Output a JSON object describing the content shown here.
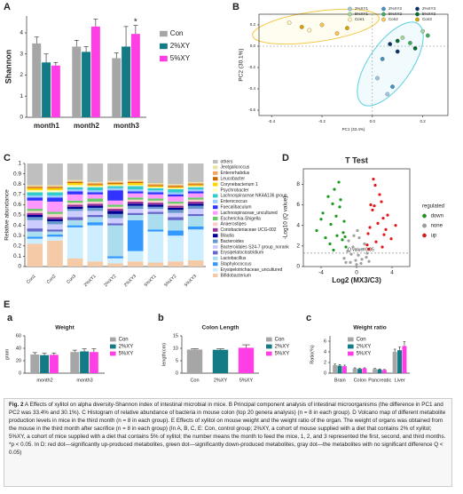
{
  "panel_labels": [
    "A",
    "B",
    "C",
    "D",
    "E",
    "a",
    "b",
    "c"
  ],
  "chart_data": [
    {
      "type": "bar",
      "ylabel": "Shannon",
      "annotation": "*",
      "categories": [
        "month1",
        "month2",
        "month3"
      ],
      "series": [
        {
          "name": "Con",
          "color": "#a6a6a6",
          "values": [
            3.5,
            3.35,
            2.8
          ],
          "errors": [
            0.3,
            0.3,
            0.25
          ]
        },
        {
          "name": "2%XY",
          "color": "#137b86",
          "values": [
            2.6,
            3.1,
            3.35
          ],
          "errors": [
            0.4,
            0.25,
            0.95
          ]
        },
        {
          "name": "5%XY",
          "color": "#ff3fe5",
          "values": [
            2.45,
            4.3,
            3.95
          ],
          "errors": [
            0.15,
            0.35,
            0.4
          ]
        }
      ],
      "ylim": [
        0,
        4.8
      ],
      "yticks": [
        0,
        1,
        2,
        3,
        4
      ]
    },
    {
      "type": "scatter",
      "xlabel": "PC1 (33.4%)",
      "ylabel": "PC2 (30.1%)",
      "series": [
        {
          "name": "2%XY1",
          "color": "#9ecae1",
          "x": [
            0.02,
            0.06
          ],
          "y": [
            -0.3,
            -0.45
          ]
        },
        {
          "name": "2%XY2",
          "color": "#4292c6",
          "x": [
            0.04,
            0.08
          ],
          "y": [
            -0.12,
            -0.38
          ]
        },
        {
          "name": "2%XY3",
          "color": "#08306b",
          "x": [
            0.07,
            0.1
          ],
          "y": [
            0.02,
            -0.05
          ]
        },
        {
          "name": "5%XY1",
          "color": "#a1d99b",
          "x": [
            0.12,
            0.2
          ],
          "y": [
            0.08,
            0.14
          ]
        },
        {
          "name": "5%XY2",
          "color": "#41ab5d",
          "x": [
            0.15,
            0.22
          ],
          "y": [
            0.03,
            0.1
          ]
        },
        {
          "name": "5%XY3",
          "color": "#006d2c",
          "x": [
            0.1,
            0.17
          ],
          "y": [
            0.05,
            -0.02
          ]
        },
        {
          "name": "Con1",
          "color": "#fff7bc",
          "x": [
            -0.33,
            -0.25
          ],
          "y": [
            0.22,
            0.15
          ]
        },
        {
          "name": "Con2",
          "color": "#fec44f",
          "x": [
            -0.2,
            -0.14
          ],
          "y": [
            0.2,
            0.12
          ]
        },
        {
          "name": "Con3",
          "color": "#d9a400",
          "x": [
            -0.28,
            -0.1
          ],
          "y": [
            0.18,
            0.17
          ]
        }
      ],
      "xlim": [
        -0.45,
        0.3
      ],
      "xticks": [
        -0.4,
        -0.2,
        {
          "value": 0,
          "label": "0.0"
        },
        0.2
      ],
      "ylim": [
        -0.65,
        0.3
      ],
      "yticks": [
        -0.6,
        -0.4,
        -0.2,
        {
          "value": 0,
          "label": "0.0"
        },
        0.2
      ]
    },
    {
      "type": "stacked_bar",
      "ylabel": "Relative abundance",
      "categories": [
        "Con1",
        "Con2",
        "Con3",
        "2%XY1",
        "2%XY2",
        "2%XY3",
        "5%XY1",
        "5%XY2",
        "5%XY3"
      ],
      "series": [
        {
          "name": "others",
          "color": "#bfbfbf",
          "values": [
            0.21,
            0.21,
            0.16,
            0.18,
            0.17,
            0.16,
            0.19,
            0.2,
            0.18
          ]
        },
        {
          "name": "Jeotgalicoccus",
          "color": "#e6e6a0",
          "values": [
            0.01,
            0.01,
            0.01,
            0.01,
            0.01,
            0.01,
            0.01,
            0.01,
            0.01
          ]
        },
        {
          "name": "Enterorhabdus",
          "color": "#f4a460",
          "values": [
            0.01,
            0.01,
            0.01,
            0.01,
            0.01,
            0.01,
            0.01,
            0.01,
            0.01
          ]
        },
        {
          "name": "Leucobacter",
          "color": "#cc6600",
          "values": [
            0.01,
            0.01,
            0.01,
            0.01,
            0.01,
            0.01,
            0.01,
            0.01,
            0.01
          ]
        },
        {
          "name": "Corynebacterium 1",
          "color": "#ffd700",
          "values": [
            0.02,
            0.02,
            0.02,
            0.01,
            0.01,
            0.02,
            0.01,
            0.01,
            0.01
          ]
        },
        {
          "name": "Psychrobacter",
          "color": "#ffffcc",
          "values": [
            0.02,
            0.02,
            0.02,
            0.01,
            0.01,
            0.01,
            0.01,
            0.01,
            0.01
          ]
        },
        {
          "name": "Lachnospiraceae NK4A136 group",
          "color": "#33cccc",
          "values": [
            0.03,
            0.03,
            0.02,
            0.03,
            0.02,
            0.03,
            0.02,
            0.03,
            0.02
          ]
        },
        {
          "name": "Enterococcus",
          "color": "#99ccff",
          "values": [
            0.02,
            0.02,
            0.02,
            0.02,
            0.02,
            0.02,
            0.02,
            0.02,
            0.02
          ]
        },
        {
          "name": "Faecalibaculum",
          "color": "#3333ff",
          "values": [
            0.03,
            0.04,
            0.03,
            0.02,
            0.1,
            0.02,
            0.02,
            0.02,
            0.02
          ]
        },
        {
          "name": "Lachnospiraceae_uncultured",
          "color": "#ff99ff",
          "values": [
            0.08,
            0.1,
            0.06,
            0.04,
            0.04,
            0.04,
            0.04,
            0.05,
            0.04
          ]
        },
        {
          "name": "Escherichia-Shigella",
          "color": "#66cc66",
          "values": [
            0.02,
            0.02,
            0.02,
            0.03,
            0.02,
            0.02,
            0.02,
            0.02,
            0.02
          ]
        },
        {
          "name": "Anaerostipes",
          "color": "#ffcccc",
          "values": [
            0.02,
            0.03,
            0.02,
            0.02,
            0.02,
            0.02,
            0.02,
            0.02,
            0.02
          ]
        },
        {
          "name": "Coriobacteriaceae UCG-002",
          "color": "#993399",
          "values": [
            0.02,
            0.02,
            0.02,
            0.02,
            0.02,
            0.02,
            0.02,
            0.02,
            0.02
          ]
        },
        {
          "name": "Blautia",
          "color": "#000099",
          "values": [
            0.02,
            0.02,
            0.02,
            0.02,
            0.03,
            0.02,
            0.02,
            0.02,
            0.02
          ]
        },
        {
          "name": "Bacteroides",
          "color": "#6699cc",
          "values": [
            0.03,
            0.03,
            0.02,
            0.03,
            0.04,
            0.03,
            0.02,
            0.03,
            0.03
          ]
        },
        {
          "name": "Bacteroidales S24-7 group_norank",
          "color": "#ccccff",
          "values": [
            0.08,
            0.05,
            0.06,
            0.04,
            0.05,
            0.04,
            0.03,
            0.04,
            0.05
          ]
        },
        {
          "name": "Erysipelatoclostridium",
          "color": "#6666cc",
          "values": [
            0.03,
            0.02,
            0.03,
            0.02,
            0.02,
            0.02,
            0.02,
            0.03,
            0.02
          ]
        },
        {
          "name": "Lactobacillus",
          "color": "#aaddee",
          "values": [
            0.05,
            0.03,
            0.05,
            0.05,
            0.3,
            0.05,
            0.15,
            0.1,
            0.1
          ]
        },
        {
          "name": "Staphylococcus",
          "color": "#3399ff",
          "values": [
            0.02,
            0.02,
            0.02,
            0.03,
            0.02,
            0.3,
            0.02,
            0.05,
            0.03
          ]
        },
        {
          "name": "Erysipelotrichaceae_uncultured",
          "color": "#cceeff",
          "values": [
            0.05,
            0.04,
            0.3,
            0.35,
            0.05,
            0.1,
            0.3,
            0.25,
            0.3
          ]
        },
        {
          "name": "Bifidobacterium",
          "color": "#f5cba7",
          "values": [
            0.22,
            0.25,
            0.08,
            0.05,
            0.03,
            0.05,
            0.04,
            0.05,
            0.06
          ]
        }
      ],
      "ylim": [
        0,
        1
      ],
      "yticks": [
        0,
        0.1,
        0.2,
        0.3,
        0.4,
        0.5,
        0.6,
        0.7,
        0.8,
        0.9,
        1
      ]
    },
    {
      "type": "scatter",
      "title": "T Test",
      "xlabel": "Log2 (MX3/C3)",
      "ylabel": "-Log10 (Q value)",
      "legend_title": "regulated",
      "annotation": "Q value: 0.05",
      "q_threshold": 0.05,
      "series": [
        {
          "name": "down",
          "color": "#1a9a1a",
          "x": [
            -4.5,
            -3.8,
            -3.2,
            -2.9,
            -2.5,
            -2.2,
            -1.9,
            -1.6,
            -1.4,
            -1.2,
            -3.5,
            -2.7,
            -2.0,
            -1.5,
            -4.0,
            -3.0,
            -2.3,
            -1.8,
            -1.3,
            -2.6
          ],
          "y": [
            3.5,
            5.2,
            6.8,
            4.1,
            7.5,
            3.0,
            5.8,
            2.6,
            4.4,
            1.9,
            2.8,
            6.1,
            8.2,
            3.3,
            4.6,
            2.2,
            4.9,
            6.5,
            2.9,
            1.6
          ]
        },
        {
          "name": "none",
          "color": "#a0a0a0",
          "x": [
            -1.4,
            -1.0,
            -0.7,
            -0.4,
            -0.1,
            0.2,
            0.5,
            0.8,
            1.1,
            1.4,
            -0.9,
            -0.3,
            0.3,
            0.9,
            -0.6,
            0.6,
            0,
            -1.2,
            1.2,
            0.1
          ],
          "y": [
            0.8,
            1.5,
            0.4,
            1.9,
            0.6,
            1.1,
            0.3,
            1.7,
            0.9,
            0.5,
            2.5,
            3.0,
            2.8,
            2.2,
            1.2,
            0.7,
            0.2,
            0.4,
            1.3,
            3.5
          ]
        },
        {
          "name": "up",
          "color": "#e01818",
          "x": [
            1.2,
            1.5,
            1.8,
            2.1,
            2.4,
            2.8,
            3.1,
            3.5,
            3.9,
            4.4,
            1.4,
            1.9,
            2.6,
            3.3,
            1.6,
            2.2,
            3.0,
            1.3,
            2.0,
            2.9
          ],
          "y": [
            2.1,
            3.8,
            5.5,
            7.9,
            4.2,
            6.3,
            3.1,
            5.0,
            2.7,
            4.0,
            1.7,
            8.5,
            7.0,
            3.6,
            6.0,
            2.4,
            4.7,
            3.2,
            5.9,
            1.9
          ]
        }
      ],
      "xlim": [
        -6,
        6
      ],
      "xticks": [
        -4,
        0,
        4
      ],
      "ylim": [
        0,
        9.5
      ],
      "yticks": [
        0,
        2,
        4,
        6,
        8
      ]
    },
    {
      "type": "bar",
      "title": "Weight",
      "ylabel": "gram",
      "categories": [
        "month2",
        "month3"
      ],
      "series": [
        {
          "name": "Con",
          "color": "#a6a6a6",
          "values": [
            30,
            34
          ],
          "errors": [
            3,
            3
          ]
        },
        {
          "name": "2%XY",
          "color": "#137b86",
          "values": [
            29,
            35
          ],
          "errors": [
            3,
            4
          ]
        },
        {
          "name": "5%XY",
          "color": "#ff3fe5",
          "values": [
            29.5,
            34
          ],
          "errors": [
            3,
            5
          ]
        }
      ],
      "ylim": [
        0,
        60
      ],
      "yticks": [
        0,
        20,
        40,
        60
      ]
    },
    {
      "type": "bar",
      "title": "Colon Length",
      "ylabel": "length(cm)",
      "categories": [
        "Con",
        "2%XY",
        "5%XY"
      ],
      "values": [
        9.5,
        9.4,
        10.2
      ],
      "errors": [
        0.3,
        0.4,
        1.2
      ],
      "colors": [
        "#a6a6a6",
        "#137b86",
        "#ff3fe5"
      ],
      "ylim": [
        0,
        15
      ],
      "yticks": [
        0,
        5,
        10,
        15
      ]
    },
    {
      "type": "bar",
      "title": "Weight ratio",
      "ylabel": "Ratio(%)",
      "categories": [
        "Brain",
        "Colon",
        "Pancreatic",
        "Liver"
      ],
      "series": [
        {
          "name": "Con",
          "color": "#a6a6a6",
          "values": [
            1.5,
            0.9,
            0.8,
            4.0
          ],
          "errors": [
            0.2,
            0.1,
            0.1,
            0.5
          ]
        },
        {
          "name": "2%XY",
          "color": "#137b86",
          "values": [
            1.4,
            0.8,
            0.7,
            4.3
          ],
          "errors": [
            0.2,
            0.1,
            0.1,
            0.6
          ]
        },
        {
          "name": "5%XY",
          "color": "#ff3fe5",
          "values": [
            1.3,
            0.9,
            0.6,
            5.1
          ],
          "errors": [
            0.2,
            0.1,
            0.1,
            0.8
          ]
        }
      ],
      "ylim": [
        0,
        7
      ],
      "yticks": [
        0,
        2,
        4,
        6
      ]
    }
  ],
  "caption": {
    "label": "Fig. 2",
    "text": "A Effects of xylitol on alpha diversity-Shannon index of intestinal microbial in mice. B Principal component analysis of intestinal microorganisms (the difference in PC1 and PC2 was 33.4% and 30.1%). C Histogram of relative abundance of bacteria in mouse colon (top 20 genera analysis) (n = 8 in each group). D Volcano map of different metabolite production levels in mice in the third month (n = 8 in each group). E Effects of xylitol on mouse weight and the weight ratio of the organ. The weight of organs was obtained from the mouse in the third month after sacrifice (n = 8 in each group) (In A, B, C, E: Con, control group; 2%XY, a cohort of mouse supplied with a diet that contains 2% of xylitol; 5%XY, a cohort of mice supplied with a diet that contains 5% of xylitol; the number means the month to feed the mice, 1, 2, and 3 represented the first, second, and third months. *p < 0.05. In D: red dot—significantly up-produced metabolites, green dot—significantly down-produced metabolites, gray dot—the metabolites with no significant difference Q < 0.05)"
  }
}
